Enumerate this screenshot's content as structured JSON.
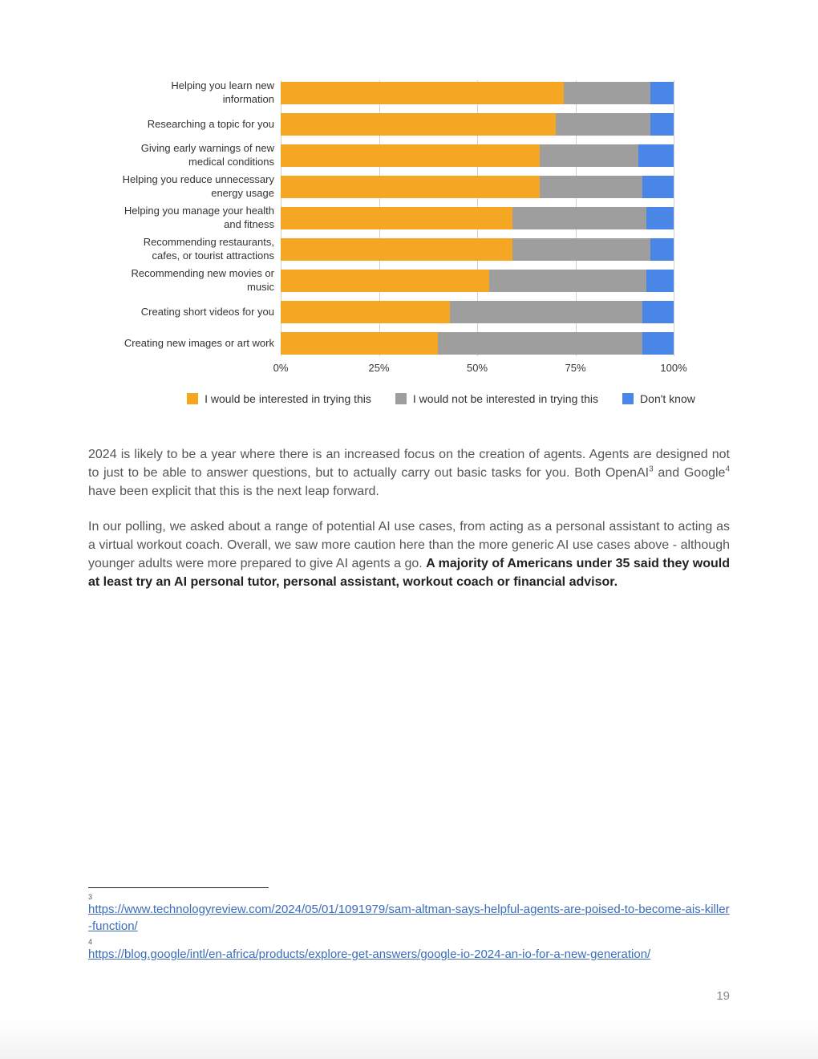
{
  "chart": {
    "type": "stacked-bar-horizontal",
    "colors": {
      "interested": "#f5a623",
      "not_interested": "#9e9e9e",
      "dont_know": "#4a86e8"
    },
    "xticks": [
      "0%",
      "25%",
      "50%",
      "75%",
      "100%"
    ],
    "xtick_positions": [
      0,
      25,
      50,
      75,
      100
    ],
    "grid_color": "#d0d0d0",
    "label_fontsize": 13,
    "tick_fontsize": 13,
    "rows": [
      {
        "label": "Helping you learn new information",
        "values": [
          72,
          22,
          6
        ]
      },
      {
        "label": "Researching a topic for you",
        "values": [
          70,
          24,
          6
        ]
      },
      {
        "label": "Giving early warnings of new medical conditions",
        "values": [
          66,
          25,
          9
        ]
      },
      {
        "label": "Helping you reduce unnecessary energy usage",
        "values": [
          66,
          26,
          8
        ]
      },
      {
        "label": "Helping you manage your health and fitness",
        "values": [
          59,
          34,
          7
        ]
      },
      {
        "label": "Recommending restaurants, cafes, or tourist attractions",
        "values": [
          59,
          35,
          6
        ]
      },
      {
        "label": "Recommending new movies or music",
        "values": [
          53,
          40,
          7
        ]
      },
      {
        "label": "Creating short videos for you",
        "values": [
          43,
          49,
          8
        ]
      },
      {
        "label": "Creating new images or art work",
        "values": [
          40,
          52,
          8
        ]
      }
    ],
    "legend": [
      {
        "label": "I would be interested in trying this",
        "color": "#f5a623"
      },
      {
        "label": "I would not be interested in trying this",
        "color": "#9e9e9e"
      },
      {
        "label": "Don't know",
        "color": "#4a86e8"
      }
    ]
  },
  "paragraphs": {
    "p1_a": "2024 is likely to be a year where there is an increased focus on the creation of agents. Agents are designed not to just to be able to answer questions, but to actually carry out basic tasks for you. Both OpenAI",
    "p1_sup1": "3",
    "p1_b": " and Google",
    "p1_sup2": "4",
    "p1_c": " have been explicit that this is the next leap forward.",
    "p2_a": "In our polling, we asked about a range of potential AI use cases, from acting as a personal assistant to acting as a virtual workout coach. Overall, we saw more caution here than the more generic AI use cases above - although younger adults were more prepared to give AI agents a go. ",
    "p2_bold": "A majority of Americans under 35 said they would at least try an AI personal tutor, personal assistant, workout coach or financial advisor."
  },
  "footnotes": {
    "n3": "3",
    "link3": "https://www.technologyreview.com/2024/05/01/1091979/sam-altman-says-helpful-agents-are-poised-to-become-ais-killer-function/",
    "n4": "4",
    "link4": "https://blog.google/intl/en-africa/products/explore-get-answers/google-io-2024-an-io-for-a-new-generation/"
  },
  "page_number": "19"
}
